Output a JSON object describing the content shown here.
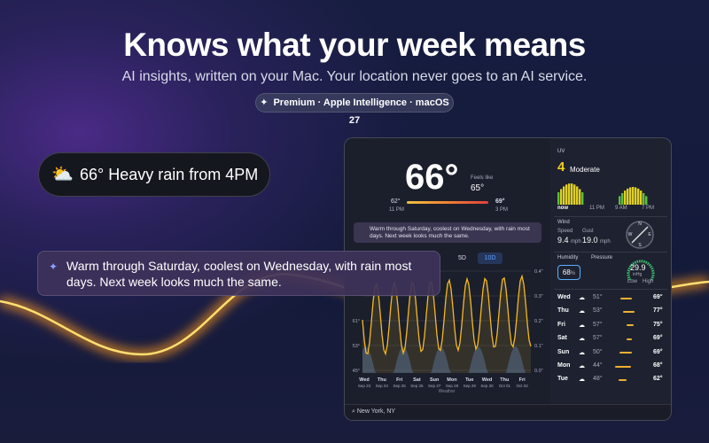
{
  "header": {
    "title": "Knows what your week means",
    "subtitle": "AI insights, written on your Mac. Your location never goes to an AI service.",
    "badge": "Premium · Apple Intelligence · macOS 27"
  },
  "callouts": {
    "current": "66° Heavy rain from 4PM",
    "insight": "Warm through Saturday, coolest on Wednesday, with rain most days. Next week looks much the same."
  },
  "window": {
    "current": {
      "temp": "66°",
      "feels_label": "Feels like",
      "feels": "65°",
      "low": "62°",
      "low_time": "11 PM",
      "high": "69°",
      "high_time": "3 PM"
    },
    "insight": "Warm through Saturday, coolest on Wednesday, with rain most days. Next week looks much the same.",
    "tabs": [
      "5D",
      "10D"
    ],
    "chart": {
      "left_ticks": [
        "61°",
        "53°",
        "45°"
      ],
      "right_ticks": [
        "0.4\"",
        "0.3\"",
        "0.2\"",
        "0.1\"",
        "0.0\""
      ],
      "days": [
        [
          "Wed",
          "Sep 23"
        ],
        [
          "Thu",
          "Sep 24"
        ],
        [
          "Fri",
          "Sep 25"
        ],
        [
          "Sat",
          "Sep 26"
        ],
        [
          "Sun",
          "Sep 27"
        ],
        [
          "Mon",
          "Sep 28"
        ],
        [
          "Tue",
          "Sep 29"
        ],
        [
          "Wed",
          "Sep 30"
        ],
        [
          "Thu",
          "Oct 01"
        ],
        [
          "Fri",
          "Oct 02"
        ]
      ],
      "axis_label": "Weather"
    },
    "uv": {
      "label": "UV",
      "index": "4",
      "level": "Moderate",
      "times": [
        "now",
        "11 PM",
        "9 AM",
        "7 PM"
      ]
    },
    "wind": {
      "label": "Wind",
      "speed_label": "Speed",
      "speed": "9.4",
      "speed_unit": "mph",
      "gust_label": "Gust",
      "gust": "19.0",
      "gust_unit": "mph",
      "compass": [
        "N",
        "E",
        "S",
        "W"
      ]
    },
    "humidity": {
      "label": "Humidity",
      "value": "68",
      "unit": "%"
    },
    "pressure": {
      "label": "Pressure",
      "value": "29.9",
      "unit": "inHg",
      "low": "Low",
      "high": "High"
    },
    "daily": [
      [
        "Wed",
        "51°",
        "69°"
      ],
      [
        "Thu",
        "53°",
        "77°"
      ],
      [
        "Fri",
        "57°",
        "75°"
      ],
      [
        "Sat",
        "57°",
        "69°"
      ],
      [
        "Sun",
        "50°",
        "69°"
      ],
      [
        "Mon",
        "44°",
        "68°"
      ],
      [
        "Tue",
        "48°",
        "62°"
      ]
    ],
    "location": "New York, NY"
  }
}
